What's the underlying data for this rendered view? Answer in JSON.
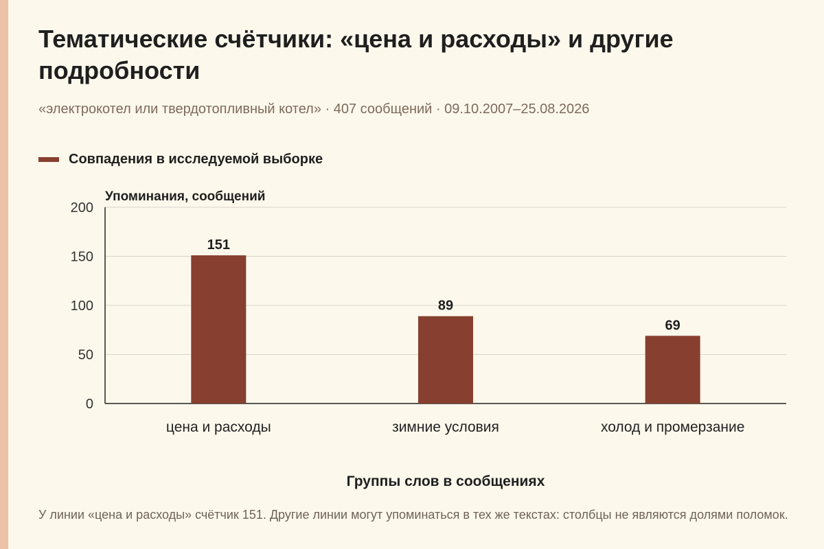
{
  "header": {
    "title": "Тематические счётчики: «цена и расходы» и другие подробности",
    "subtitle": "«электрокотел или твердотопливный котел» · 407 сообщений · 09.10.2007–25.08.2026"
  },
  "legend": {
    "label": "Совпадения в исследуемой выборке"
  },
  "colors": {
    "bar": "#873f2f",
    "stripe": "#eec2a6",
    "background": "#fdf8ec",
    "grid": "#d9d4ca"
  },
  "chart_data": {
    "type": "bar",
    "categories": [
      "цена и расходы",
      "зимние условия",
      "холод и промерзание"
    ],
    "series": [
      {
        "name": "Совпадения в исследуемой выборке",
        "values": [
          151,
          89,
          69
        ]
      }
    ],
    "data_labels": [
      "151",
      "89",
      "69"
    ],
    "ylabel": "Упоминания, сообщений",
    "xlabel": "Группы слов в сообщениях",
    "ylim": [
      0,
      200
    ],
    "yticks": [
      0,
      50,
      100,
      150,
      200
    ],
    "ytick_labels": [
      "0",
      "50",
      "100",
      "150",
      "200"
    ],
    "grid": true,
    "legend_position": "top-left"
  },
  "footnote": {
    "text": "У линии «цена и расходы» счётчик 151. Другие линии могут упоминаться в тех же текстах: столбцы не являются долями поломок."
  }
}
